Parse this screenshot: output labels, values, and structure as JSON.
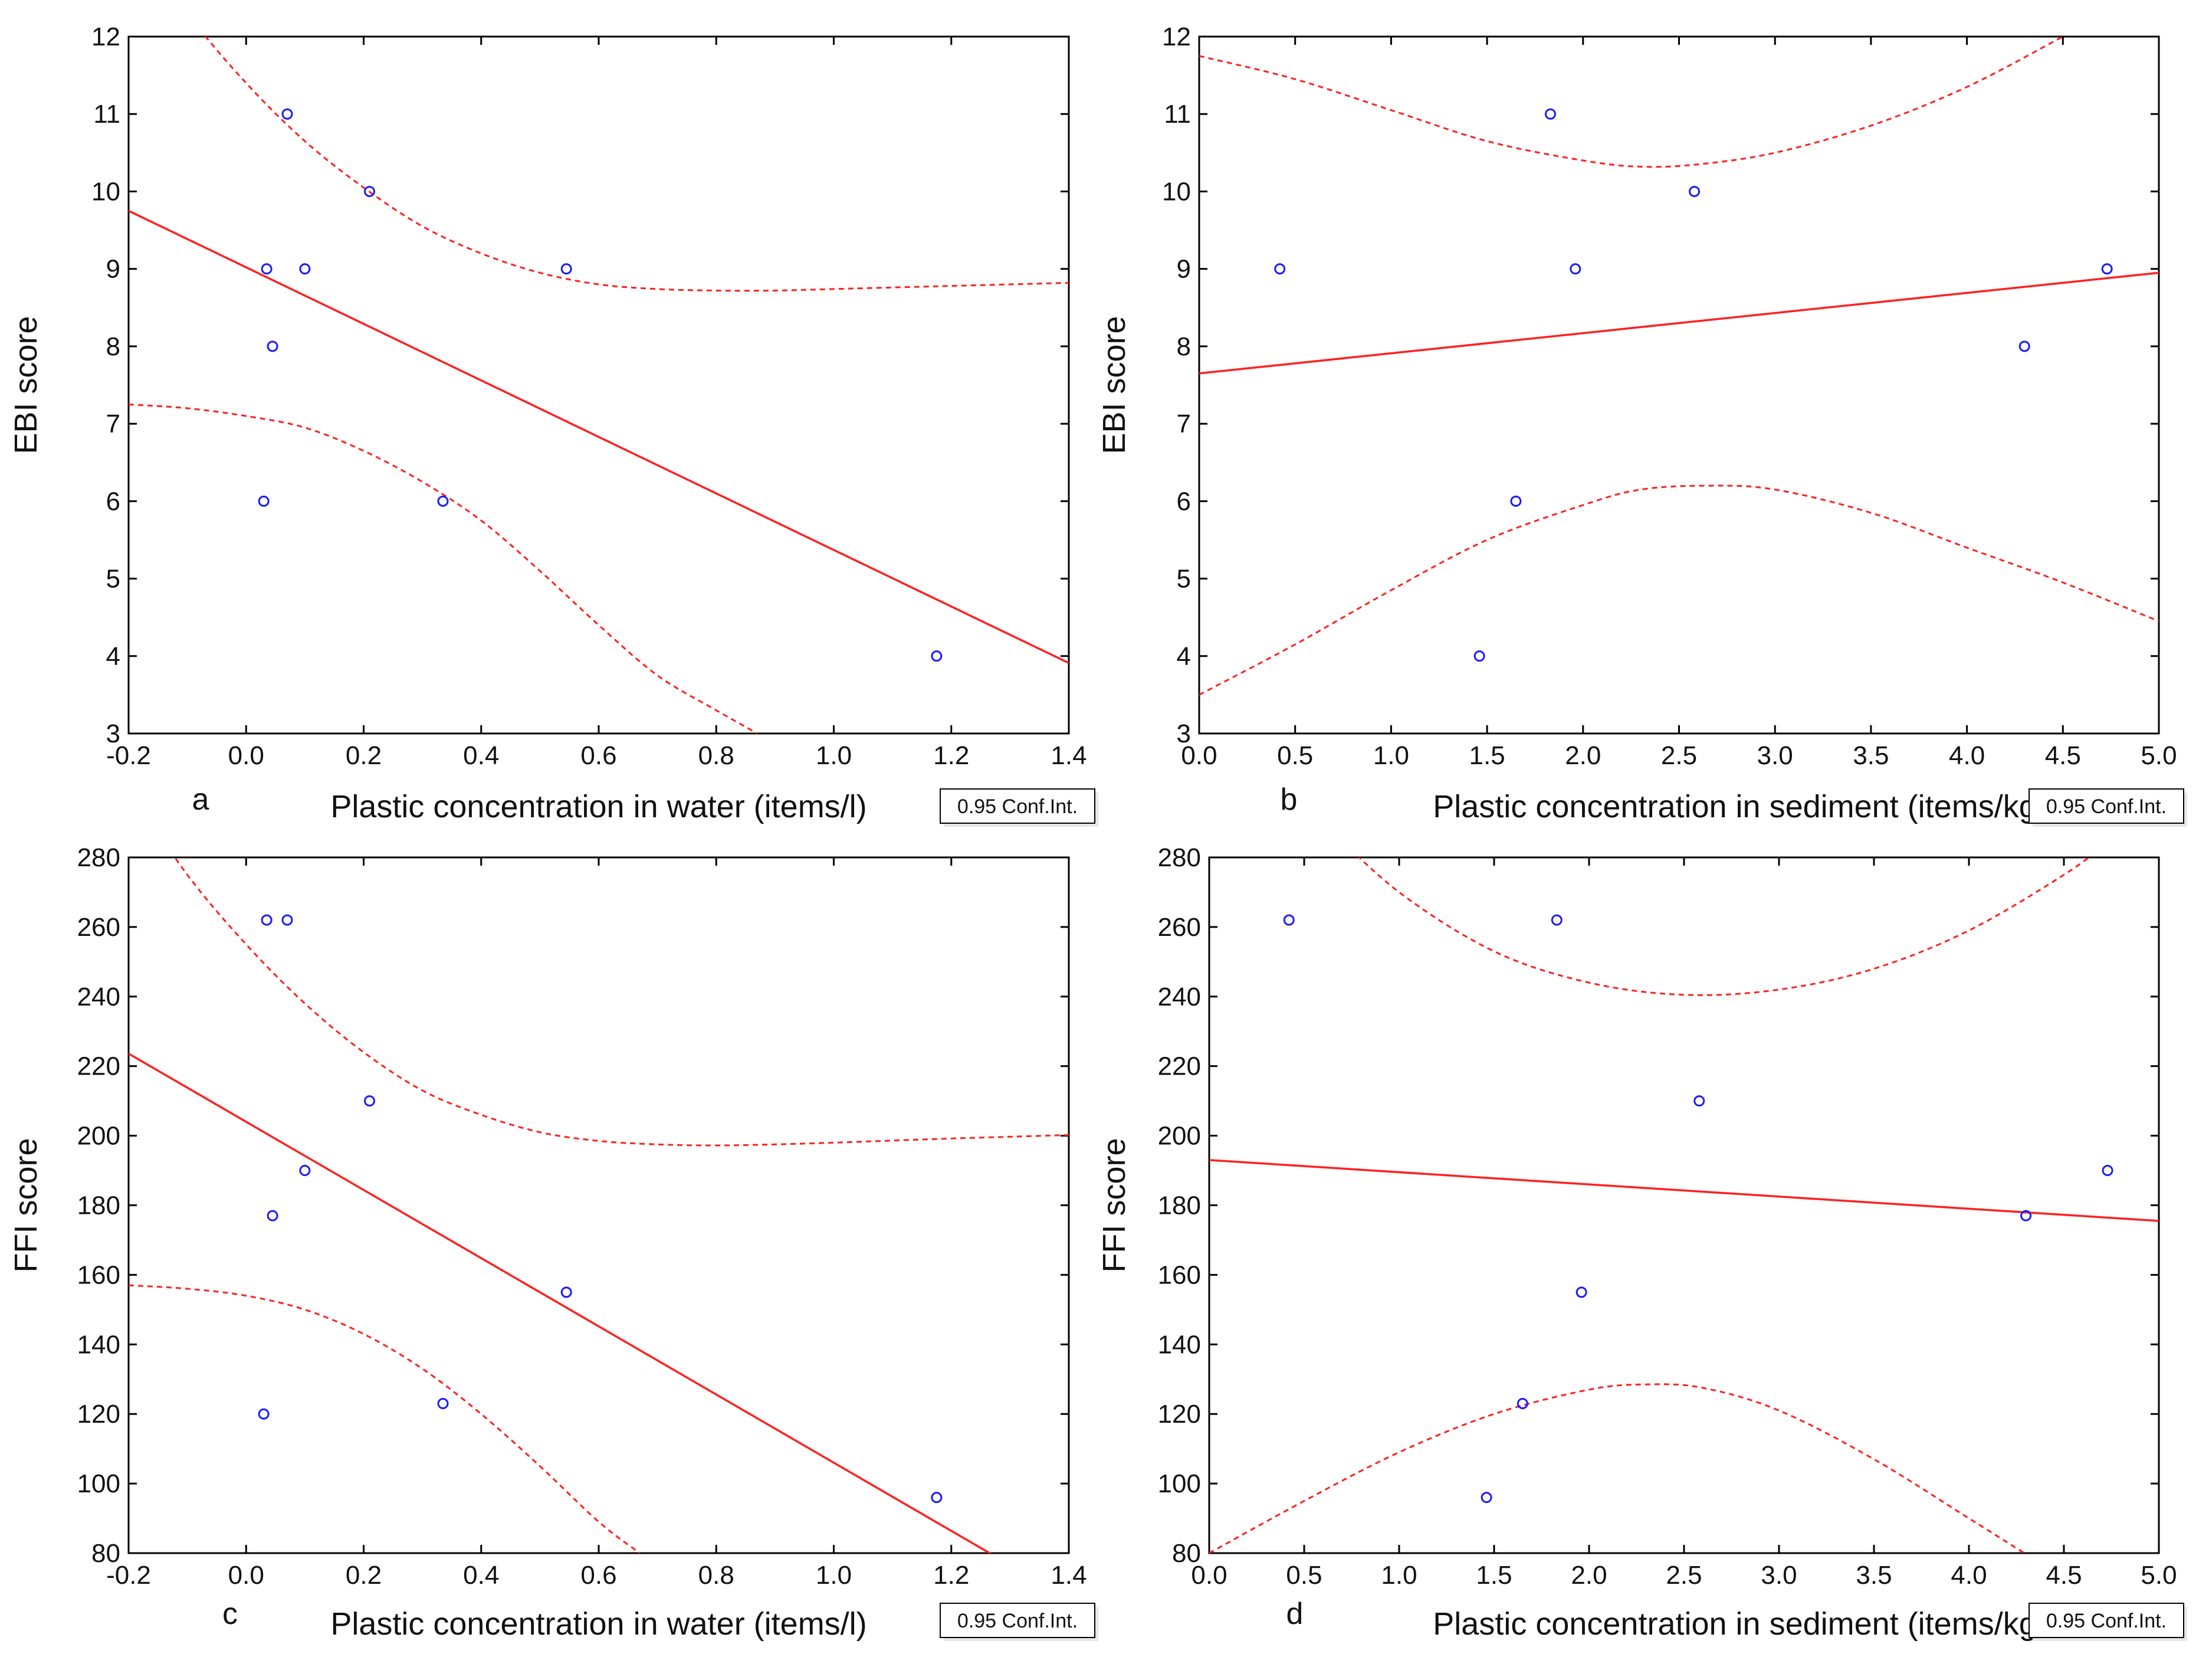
{
  "figure": {
    "background": "#ffffff"
  },
  "colors": {
    "fit_line": "#ff2020",
    "points": "#1a1aff",
    "frame": "#000000"
  },
  "chart_data": [
    {
      "type": "scatter",
      "panel_label": "a",
      "xlabel": "Plastic concentration in water (items/l)",
      "ylabel": "EBI score",
      "xlim": [
        -0.2,
        1.4
      ],
      "ylim": [
        3,
        12
      ],
      "xticks": [
        -0.2,
        0.0,
        0.2,
        0.4,
        0.6,
        0.8,
        1.0,
        1.2,
        1.4
      ],
      "yticks": [
        3,
        4,
        5,
        6,
        7,
        8,
        9,
        10,
        11,
        12
      ],
      "x_tick_labels": [
        "-0.2",
        "0.0",
        "0.2",
        "0.4",
        "0.6",
        "0.8",
        "1.0",
        "1.2",
        "1.4"
      ],
      "y_tick_labels": [
        "3",
        "4",
        "5",
        "6",
        "7",
        "8",
        "9",
        "10",
        "11",
        "12"
      ],
      "points": [
        {
          "x": 0.03,
          "y": 6
        },
        {
          "x": 0.035,
          "y": 9
        },
        {
          "x": 0.045,
          "y": 8
        },
        {
          "x": 0.07,
          "y": 11
        },
        {
          "x": 0.1,
          "y": 9
        },
        {
          "x": 0.21,
          "y": 10
        },
        {
          "x": 0.335,
          "y": 6
        },
        {
          "x": 0.545,
          "y": 9
        },
        {
          "x": 1.175,
          "y": 4
        }
      ],
      "fit": {
        "intercept": 9.02,
        "slope": -3.65
      },
      "ci_upper": [
        [
          -0.2,
          13.4
        ],
        [
          -0.1,
          12.3
        ],
        [
          0.0,
          11.4
        ],
        [
          0.1,
          10.65
        ],
        [
          0.2,
          10.05
        ],
        [
          0.3,
          9.55
        ],
        [
          0.4,
          9.2
        ],
        [
          0.5,
          8.95
        ],
        [
          0.6,
          8.8
        ],
        [
          0.7,
          8.74
        ],
        [
          0.8,
          8.72
        ],
        [
          0.9,
          8.72
        ],
        [
          1.0,
          8.74
        ],
        [
          1.1,
          8.76
        ],
        [
          1.2,
          8.78
        ],
        [
          1.3,
          8.8
        ],
        [
          1.4,
          8.82
        ]
      ],
      "ci_lower": [
        [
          -0.2,
          7.25
        ],
        [
          -0.1,
          7.2
        ],
        [
          0.0,
          7.1
        ],
        [
          0.1,
          6.95
        ],
        [
          0.2,
          6.65
        ],
        [
          0.3,
          6.25
        ],
        [
          0.4,
          5.75
        ],
        [
          0.5,
          5.1
        ],
        [
          0.6,
          4.4
        ],
        [
          0.7,
          3.75
        ],
        [
          0.8,
          3.3
        ],
        [
          0.87,
          3.0
        ]
      ],
      "legend_text": "0.95 Conf.Int."
    },
    {
      "type": "scatter",
      "panel_label": "b",
      "xlabel": "Plastic concentration in sediment (items/kg)",
      "ylabel": "EBI score",
      "xlim": [
        0.0,
        5.0
      ],
      "ylim": [
        3,
        12
      ],
      "xticks": [
        0.0,
        0.5,
        1.0,
        1.5,
        2.0,
        2.5,
        3.0,
        3.5,
        4.0,
        4.5,
        5.0
      ],
      "yticks": [
        3,
        4,
        5,
        6,
        7,
        8,
        9,
        10,
        11,
        12
      ],
      "x_tick_labels": [
        "0.0",
        "0.5",
        "1.0",
        "1.5",
        "2.0",
        "2.5",
        "3.0",
        "3.5",
        "4.0",
        "4.5",
        "5.0"
      ],
      "y_tick_labels": [
        "3",
        "4",
        "5",
        "6",
        "7",
        "8",
        "9",
        "10",
        "11",
        "12"
      ],
      "points": [
        {
          "x": 0.42,
          "y": 9
        },
        {
          "x": 1.46,
          "y": 4
        },
        {
          "x": 1.65,
          "y": 6
        },
        {
          "x": 1.83,
          "y": 11
        },
        {
          "x": 1.96,
          "y": 9
        },
        {
          "x": 2.58,
          "y": 10
        },
        {
          "x": 4.3,
          "y": 8
        },
        {
          "x": 4.73,
          "y": 9
        }
      ],
      "fit": {
        "intercept": 7.65,
        "slope": 0.26
      },
      "ci_upper": [
        [
          0.0,
          11.75
        ],
        [
          0.5,
          11.45
        ],
        [
          1.0,
          11.05
        ],
        [
          1.5,
          10.65
        ],
        [
          2.0,
          10.4
        ],
        [
          2.3,
          10.32
        ],
        [
          2.6,
          10.35
        ],
        [
          3.0,
          10.5
        ],
        [
          3.5,
          10.85
        ],
        [
          4.0,
          11.35
        ],
        [
          4.5,
          12.0
        ]
      ],
      "ci_lower": [
        [
          0.0,
          3.5
        ],
        [
          0.5,
          4.15
        ],
        [
          1.0,
          4.85
        ],
        [
          1.5,
          5.5
        ],
        [
          2.0,
          5.95
        ],
        [
          2.3,
          6.15
        ],
        [
          2.65,
          6.2
        ],
        [
          3.0,
          6.15
        ],
        [
          3.5,
          5.85
        ],
        [
          4.0,
          5.4
        ],
        [
          4.5,
          4.95
        ],
        [
          5.0,
          4.45
        ]
      ],
      "legend_text": "0.95 Conf.Int."
    },
    {
      "type": "scatter",
      "panel_label": "c",
      "xlabel": "Plastic concentration in water (items/l)",
      "ylabel": "FFI score",
      "xlim": [
        -0.2,
        1.4
      ],
      "ylim": [
        80,
        280
      ],
      "xticks": [
        -0.2,
        0.0,
        0.2,
        0.4,
        0.6,
        0.8,
        1.0,
        1.2,
        1.4
      ],
      "yticks": [
        80,
        100,
        120,
        140,
        160,
        180,
        200,
        220,
        240,
        260,
        280
      ],
      "x_tick_labels": [
        "-0.2",
        "0.0",
        "0.2",
        "0.4",
        "0.6",
        "0.8",
        "1.0",
        "1.2",
        "1.4"
      ],
      "y_tick_labels": [
        "80",
        "100",
        "120",
        "140",
        "160",
        "180",
        "200",
        "220",
        "240",
        "260",
        "280"
      ],
      "points": [
        {
          "x": 0.03,
          "y": 120
        },
        {
          "x": 0.035,
          "y": 262
        },
        {
          "x": 0.045,
          "y": 177
        },
        {
          "x": 0.07,
          "y": 262
        },
        {
          "x": 0.1,
          "y": 190
        },
        {
          "x": 0.21,
          "y": 210
        },
        {
          "x": 0.335,
          "y": 123
        },
        {
          "x": 0.545,
          "y": 155
        },
        {
          "x": 1.175,
          "y": 96
        }
      ],
      "fit": {
        "intercept": 204.0,
        "slope": -98.0
      },
      "ci_upper": [
        [
          -0.2,
          300
        ],
        [
          -0.1,
          275
        ],
        [
          0.0,
          255
        ],
        [
          0.1,
          238
        ],
        [
          0.2,
          224
        ],
        [
          0.3,
          213
        ],
        [
          0.4,
          206
        ],
        [
          0.5,
          201
        ],
        [
          0.6,
          198.5
        ],
        [
          0.7,
          197.5
        ],
        [
          0.8,
          197.2
        ],
        [
          0.9,
          197.5
        ],
        [
          1.0,
          198
        ],
        [
          1.1,
          198.6
        ],
        [
          1.2,
          199.2
        ],
        [
          1.3,
          199.7
        ],
        [
          1.4,
          200.2
        ]
      ],
      "ci_lower": [
        [
          -0.2,
          157
        ],
        [
          -0.1,
          156
        ],
        [
          0.0,
          154
        ],
        [
          0.1,
          150
        ],
        [
          0.2,
          143
        ],
        [
          0.3,
          133
        ],
        [
          0.4,
          120
        ],
        [
          0.5,
          105
        ],
        [
          0.6,
          89
        ],
        [
          0.67,
          80
        ]
      ],
      "legend_text": "0.95 Conf.Int."
    },
    {
      "type": "scatter",
      "panel_label": "d",
      "xlabel": "Plastic concentration in sediment (items/kg)",
      "ylabel": "FFI score",
      "xlim": [
        0.0,
        5.0
      ],
      "ylim": [
        80,
        280
      ],
      "xticks": [
        0.0,
        0.5,
        1.0,
        1.5,
        2.0,
        2.5,
        3.0,
        3.5,
        4.0,
        4.5,
        5.0
      ],
      "yticks": [
        80,
        100,
        120,
        140,
        160,
        180,
        200,
        220,
        240,
        260,
        280
      ],
      "x_tick_labels": [
        "0.0",
        "0.5",
        "1.0",
        "1.5",
        "2.0",
        "2.5",
        "3.0",
        "3.5",
        "4.0",
        "4.5",
        "5.0"
      ],
      "y_tick_labels": [
        "80",
        "100",
        "120",
        "140",
        "160",
        "180",
        "200",
        "220",
        "240",
        "260",
        "280"
      ],
      "points": [
        {
          "x": 0.42,
          "y": 262
        },
        {
          "x": 1.46,
          "y": 96
        },
        {
          "x": 1.65,
          "y": 123
        },
        {
          "x": 1.83,
          "y": 262
        },
        {
          "x": 1.96,
          "y": 155
        },
        {
          "x": 2.58,
          "y": 210
        },
        {
          "x": 4.3,
          "y": 177
        },
        {
          "x": 4.73,
          "y": 190
        }
      ],
      "fit": {
        "intercept": 193.0,
        "slope": -3.5
      },
      "ci_upper": [
        [
          0.6,
          290
        ],
        [
          1.0,
          270
        ],
        [
          1.5,
          253
        ],
        [
          2.0,
          244
        ],
        [
          2.5,
          240.5
        ],
        [
          3.0,
          242
        ],
        [
          3.5,
          248
        ],
        [
          4.0,
          259
        ],
        [
          4.5,
          275
        ],
        [
          4.75,
          285
        ]
      ],
      "ci_lower": [
        [
          0.0,
          80
        ],
        [
          0.5,
          95
        ],
        [
          1.0,
          109
        ],
        [
          1.5,
          120
        ],
        [
          2.0,
          127
        ],
        [
          2.3,
          128.5
        ],
        [
          2.6,
          127.5
        ],
        [
          3.0,
          121
        ],
        [
          3.5,
          107
        ],
        [
          4.0,
          90
        ],
        [
          4.35,
          78
        ]
      ],
      "legend_text": "0.95 Conf.Int."
    }
  ]
}
